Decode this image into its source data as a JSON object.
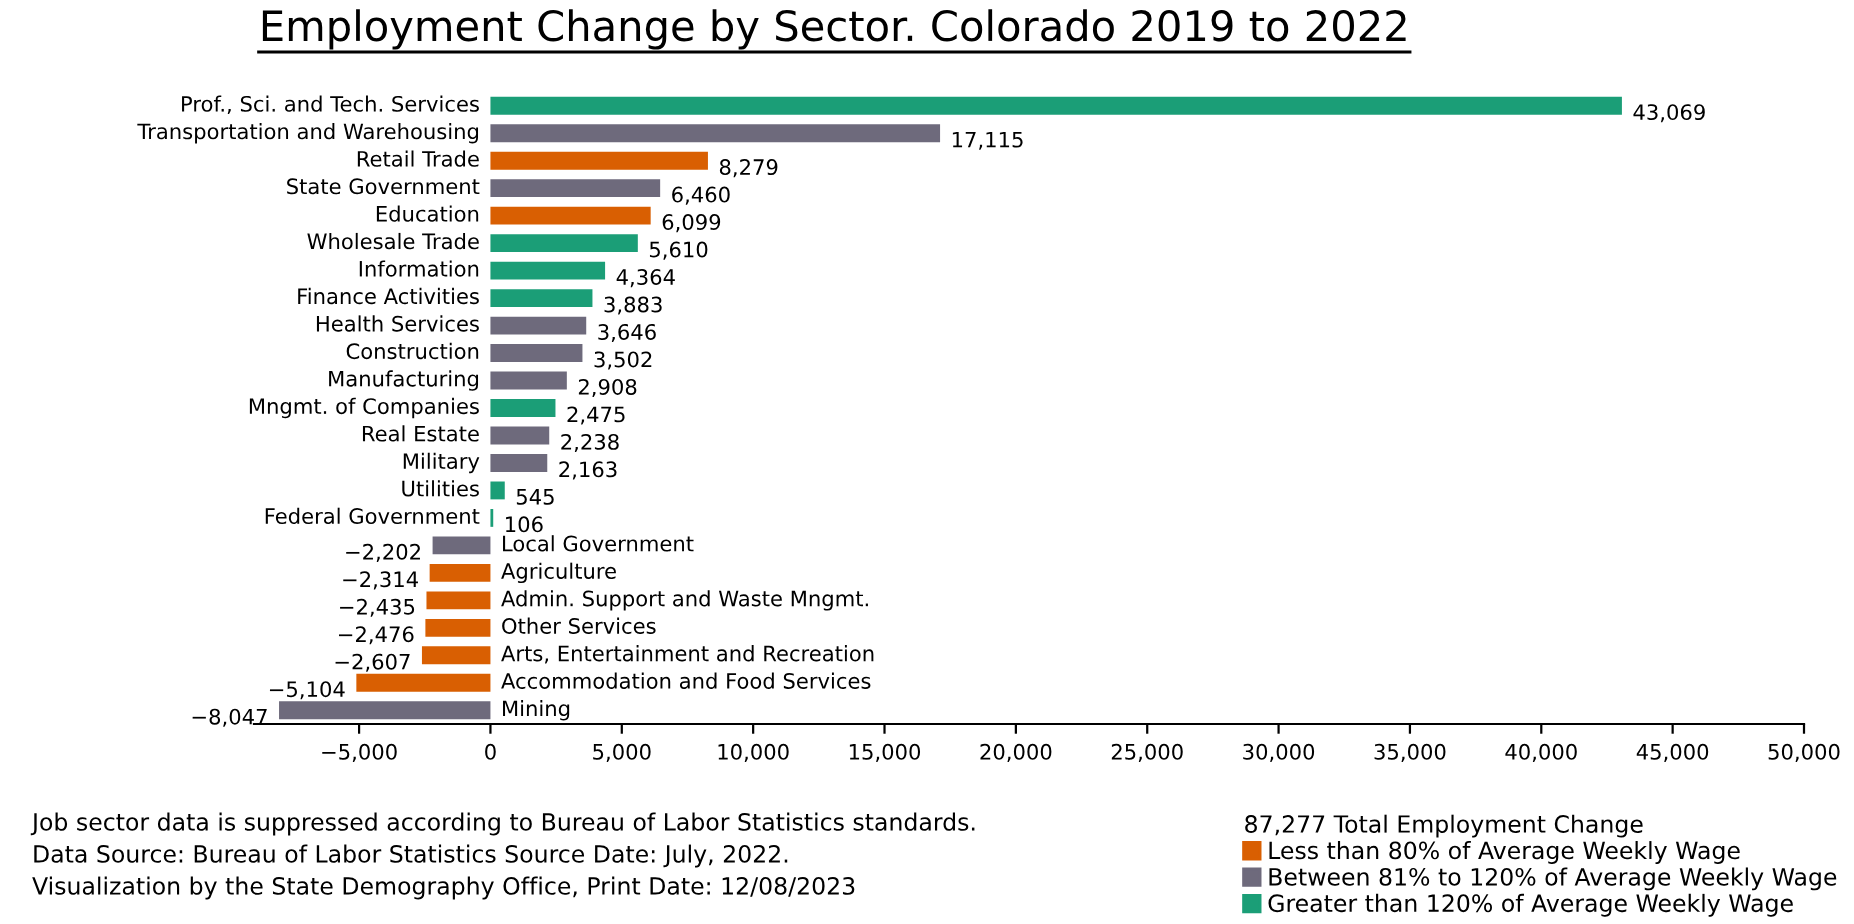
{
  "chart_data": {
    "type": "bar",
    "orientation": "horizontal",
    "title": "Employment Change by Sector. Colorado 2019 to 2022",
    "categories": [
      "Prof., Sci. and Tech. Services",
      "Transportation and Warehousing",
      "Retail Trade",
      "State Government",
      "Education",
      "Wholesale Trade",
      "Information",
      "Finance Activities",
      "Health Services",
      "Construction",
      "Manufacturing",
      "Mngmt. of Companies",
      "Real Estate",
      "Military",
      "Utilities",
      "Federal Government",
      "Local Government",
      "Agriculture",
      "Admin. Support and Waste Mngmt.",
      "Other Services",
      "Arts, Entertainment and Recreation",
      "Accommodation and Food Services",
      "Mining"
    ],
    "series": [
      {
        "name": "Less than 80% of Average Weekly Wage",
        "color": "#d95f02",
        "values": [
          null,
          null,
          8279,
          null,
          6099,
          null,
          null,
          null,
          null,
          null,
          null,
          null,
          null,
          null,
          null,
          null,
          null,
          -2314,
          -2435,
          -2476,
          -2607,
          -5104,
          null
        ],
        "value_labels": [
          null,
          null,
          "8,279",
          null,
          "6,099",
          null,
          null,
          null,
          null,
          null,
          null,
          null,
          null,
          null,
          null,
          null,
          null,
          "−2,314",
          "−2,435",
          "−2,476",
          "−2,607",
          "−5,104",
          null
        ]
      },
      {
        "name": "Between 81% to 120% of Average Weekly Wage",
        "color": "#6e6a7c",
        "values": [
          null,
          17115,
          null,
          6460,
          null,
          null,
          null,
          null,
          3646,
          3502,
          2908,
          null,
          2238,
          2163,
          null,
          null,
          -2202,
          null,
          null,
          null,
          null,
          null,
          -8047
        ],
        "value_labels": [
          null,
          "17,115",
          null,
          "6,460",
          null,
          null,
          null,
          null,
          "3,646",
          "3,502",
          "2,908",
          null,
          "2,238",
          "2,163",
          null,
          null,
          "−2,202",
          null,
          null,
          null,
          null,
          null,
          "−8,047"
        ]
      },
      {
        "name": "Greater than 120% of Average Weekly Wage",
        "color": "#1b9e77",
        "values": [
          43069,
          null,
          null,
          null,
          null,
          5610,
          4364,
          3883,
          null,
          null,
          null,
          2475,
          null,
          null,
          545,
          106,
          null,
          null,
          null,
          null,
          null,
          null,
          null
        ],
        "value_labels": [
          "43,069",
          null,
          null,
          null,
          null,
          "5,610",
          "4,364",
          "3,883",
          null,
          null,
          null,
          "2,475",
          null,
          null,
          "545",
          "106",
          null,
          null,
          null,
          null,
          null,
          null,
          null
        ]
      }
    ],
    "xlim": [
      -9000,
      50000
    ],
    "xticks": [
      {
        "value": -5000,
        "label": "−5,000"
      },
      0,
      {
        "value": 5000,
        "label": "5,000"
      },
      {
        "value": 10000,
        "label": "10,000"
      },
      {
        "value": 15000,
        "label": "15,000"
      },
      {
        "value": 20000,
        "label": "20,000"
      },
      {
        "value": 25000,
        "label": "25,000"
      },
      {
        "value": 30000,
        "label": "30,000"
      },
      {
        "value": 35000,
        "label": "35,000"
      },
      {
        "value": 40000,
        "label": "40,000"
      },
      {
        "value": 45000,
        "label": "45,000"
      },
      {
        "value": 50000,
        "label": "50,000"
      }
    ],
    "grid": false,
    "legend": "bottom right",
    "legend_title": "87,277 Total Employment Change",
    "annotations": [
      "Job sector data is suppressed according to Bureau of Labor Statistics standards.",
      "Data Source: Bureau of Labor Statistics Source Date: July, 2022.",
      "Visualization by the State Demography Office, Print Date: 12/08/2023"
    ]
  }
}
